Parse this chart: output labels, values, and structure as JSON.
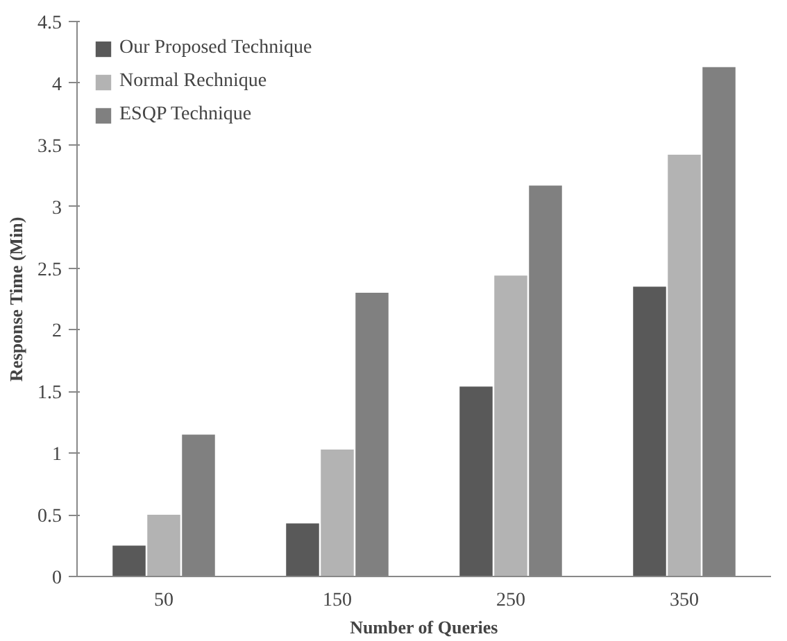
{
  "chart_data": {
    "type": "bar",
    "xlabel": "Number of Queries",
    "ylabel": "Response Time (Min)",
    "categories": [
      "50",
      "150",
      "250",
      "350"
    ],
    "series": [
      {
        "name": "Our Proposed Technique",
        "color": "#595959",
        "values": [
          0.25,
          0.43,
          1.54,
          2.35
        ]
      },
      {
        "name": "Normal Rechnique",
        "color": "#b3b3b3",
        "values": [
          0.5,
          1.03,
          2.44,
          3.42
        ]
      },
      {
        "name": "ESQP Technique",
        "color": "#808080",
        "values": [
          1.15,
          2.3,
          3.17,
          4.13
        ]
      }
    ],
    "ylim": [
      0,
      4.5
    ],
    "yticks": [
      0,
      0.5,
      1,
      1.5,
      2,
      2.5,
      3,
      3.5,
      4,
      4.5
    ],
    "grid": false,
    "legend": "top left"
  }
}
